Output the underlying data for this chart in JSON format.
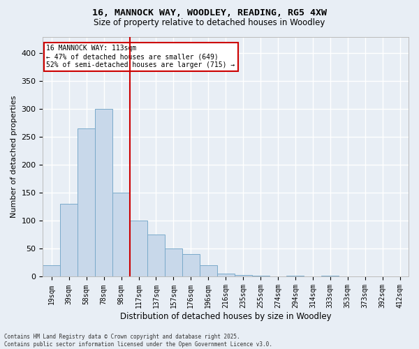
{
  "title1": "16, MANNOCK WAY, WOODLEY, READING, RG5 4XW",
  "title2": "Size of property relative to detached houses in Woodley",
  "xlabel": "Distribution of detached houses by size in Woodley",
  "ylabel": "Number of detached properties",
  "bar_color": "#c8d8ea",
  "bar_edge_color": "#7aaaca",
  "vline_x": 4.5,
  "vline_color": "#cc0000",
  "categories": [
    "19sqm",
    "39sqm",
    "58sqm",
    "78sqm",
    "98sqm",
    "117sqm",
    "137sqm",
    "157sqm",
    "176sqm",
    "196sqm",
    "216sqm",
    "235sqm",
    "255sqm",
    "274sqm",
    "294sqm",
    "314sqm",
    "333sqm",
    "353sqm",
    "373sqm",
    "392sqm",
    "412sqm"
  ],
  "values": [
    20,
    130,
    265,
    300,
    150,
    100,
    75,
    50,
    40,
    20,
    5,
    3,
    2,
    0,
    2,
    0,
    2,
    0,
    0,
    0,
    0
  ],
  "ylim": [
    0,
    430
  ],
  "yticks": [
    0,
    50,
    100,
    150,
    200,
    250,
    300,
    350,
    400
  ],
  "annotation_text": "16 MANNOCK WAY: 113sqm\n← 47% of detached houses are smaller (649)\n52% of semi-detached houses are larger (715) →",
  "footer": "Contains HM Land Registry data © Crown copyright and database right 2025.\nContains public sector information licensed under the Open Government Licence v3.0.",
  "bg_color": "#e8eef5",
  "plot_bg_color": "#e8eef5",
  "grid_color": "#ffffff",
  "title1_fontsize": 9.5,
  "title2_fontsize": 8.5,
  "ylabel_fontsize": 8,
  "xlabel_fontsize": 8.5,
  "tick_fontsize": 7,
  "ann_fontsize": 7,
  "footer_fontsize": 5.5
}
